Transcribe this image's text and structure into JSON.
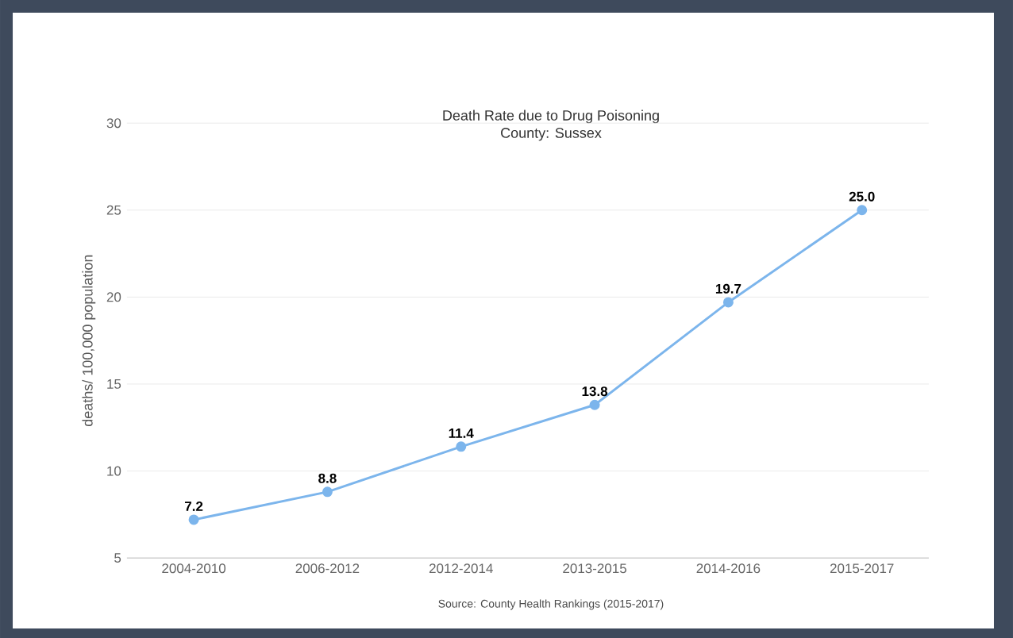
{
  "chart_data": {
    "type": "line",
    "title": "Death Rate due to Drug Poisoning",
    "subtitle": "County: Sussex",
    "ylabel": "deaths/ 100,000 population",
    "categories": [
      "2004-2010",
      "2006-2012",
      "2012-2014",
      "2013-2015",
      "2014-2016",
      "2015-2017"
    ],
    "values": [
      7.2,
      8.8,
      11.4,
      13.8,
      19.7,
      25.0
    ],
    "value_labels": [
      "7.2",
      "8.8",
      "11.4",
      "13.8",
      "19.7",
      "25.0"
    ],
    "color": "#7cb5ec",
    "marker": "circle",
    "ylim": [
      5,
      30
    ],
    "yticks": [
      5,
      10,
      15,
      20,
      25,
      30
    ],
    "grid": "y",
    "annotations": [
      "Source: County Health Rankings (2015-2017)"
    ]
  }
}
